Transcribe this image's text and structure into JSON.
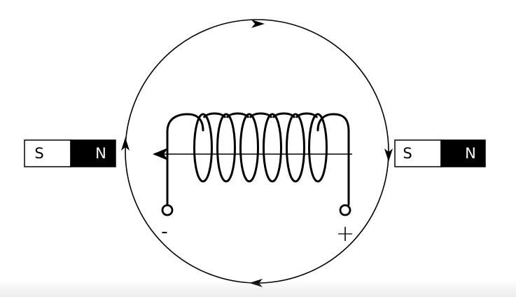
{
  "colors": {
    "ink": "#000000",
    "paper": "#ffffff",
    "magnet_north_fill": "#000000",
    "magnet_south_fill": "#ffffff"
  },
  "left_magnet": {
    "south_label": "S",
    "north_label": "N"
  },
  "right_magnet": {
    "south_label": "S",
    "north_label": "N"
  },
  "terminals": {
    "negative_label": "-",
    "positive_label": "+"
  }
}
